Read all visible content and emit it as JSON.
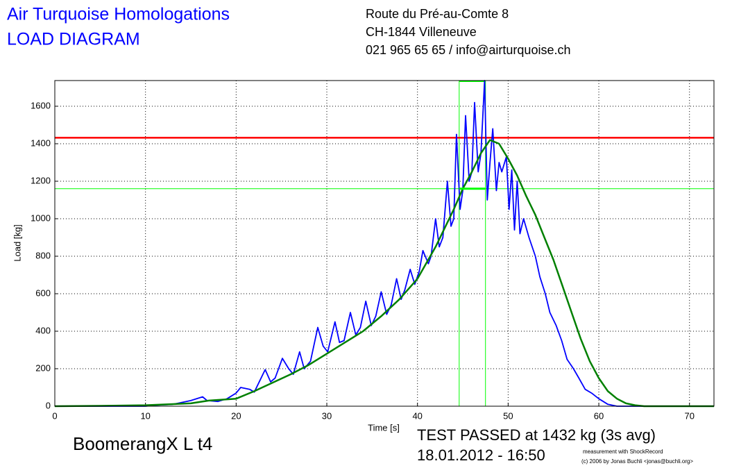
{
  "header": {
    "company": "Air Turquoise Homologations",
    "document": "LOAD DIAGRAM",
    "address": [
      "Route du Pré-au-Comte 8",
      "CH-1844 Villeneuve",
      "021 965 65 65 / info@airturquoise.ch"
    ]
  },
  "chart_data": {
    "type": "line",
    "x_label": "Time [s]",
    "y_label": "Load [kg]",
    "xlim": [
      0,
      72.7
    ],
    "xticks": [
      0,
      10,
      20,
      30,
      40,
      50,
      60,
      70
    ],
    "ylim": [
      0,
      1737
    ],
    "yticks": [
      0,
      200,
      400,
      600,
      800,
      1000,
      1200,
      1400,
      1600
    ],
    "grid": true,
    "series": [
      {
        "color": "#0000ff",
        "x": [
          0,
          10,
          11,
          13,
          15,
          16.3,
          16.8,
          18,
          19,
          20,
          20.5,
          21.5,
          22,
          23.2,
          23.8,
          24.3,
          25.1,
          25.8,
          26.3,
          27,
          27.5,
          28.2,
          29,
          29.6,
          30.1,
          30.9,
          31.4,
          31.9,
          32.6,
          33.2,
          33.7,
          34.3,
          34.9,
          35.4,
          36,
          36.6,
          37.1,
          37.7,
          38.2,
          38.6,
          39.2,
          39.7,
          40.2,
          40.6,
          41.2,
          41.5,
          42,
          42.4,
          42.8,
          43.3,
          43.7,
          44,
          44.3,
          44.7,
          45,
          45.3,
          45.7,
          46,
          46.3,
          46.7,
          47,
          47.4,
          47.7,
          48,
          48.3,
          48.7,
          49,
          49.3,
          49.8,
          50.1,
          50.4,
          50.7,
          51,
          51.3,
          51.7,
          52.3,
          53,
          53.5,
          54.1,
          54.6,
          55.3,
          55.9,
          56.5,
          57.2,
          57.8,
          58.5,
          59.2,
          60,
          61,
          62,
          72.7
        ],
        "values": [
          0,
          0,
          5,
          10,
          30,
          50,
          30,
          25,
          40,
          70,
          100,
          90,
          75,
          195,
          130,
          150,
          255,
          200,
          170,
          290,
          200,
          240,
          420,
          320,
          290,
          450,
          340,
          350,
          500,
          380,
          420,
          560,
          430,
          480,
          610,
          490,
          540,
          680,
          570,
          620,
          730,
          650,
          720,
          830,
          760,
          800,
          1000,
          850,
          900,
          1200,
          960,
          1000,
          1450,
          1050,
          1150,
          1550,
          1200,
          1250,
          1620,
          1250,
          1350,
          1737,
          1100,
          1300,
          1480,
          1150,
          1300,
          1250,
          1330,
          1050,
          1260,
          940,
          1200,
          920,
          1000,
          900,
          800,
          690,
          600,
          500,
          430,
          350,
          250,
          200,
          150,
          90,
          70,
          40,
          10,
          0,
          0
        ]
      },
      {
        "color": "#008000",
        "x": [
          0,
          5,
          10,
          15,
          17,
          20,
          22,
          24,
          26,
          28,
          30,
          32,
          34,
          36,
          38,
          40,
          42,
          44,
          45,
          46,
          47,
          48,
          49,
          50,
          51,
          52,
          53,
          54,
          55,
          56,
          57,
          58,
          59,
          60,
          61,
          62,
          63,
          64,
          65,
          72.7
        ],
        "values": [
          0,
          2,
          5,
          15,
          30,
          40,
          80,
          125,
          170,
          220,
          280,
          340,
          400,
          480,
          570,
          680,
          850,
          1050,
          1160,
          1250,
          1350,
          1420,
          1400,
          1320,
          1230,
          1120,
          1020,
          900,
          780,
          640,
          500,
          360,
          240,
          150,
          80,
          40,
          15,
          5,
          0,
          0
        ]
      }
    ],
    "limit_line": {
      "value": 1432,
      "color": "#ff0000"
    },
    "avg_window": {
      "start": 44.6,
      "end": 47.5,
      "level": 1160,
      "color": "#00ff00"
    }
  },
  "footer": {
    "model": "BoomerangX L t4",
    "result": "TEST PASSED at 1432 kg (3s avg)",
    "date": "18.01.2012 - 16:50",
    "credit": [
      "measurement with ShockRecord",
      "(c) 2006 by Jonas Buchli <jonas@buchli.org>"
    ]
  }
}
